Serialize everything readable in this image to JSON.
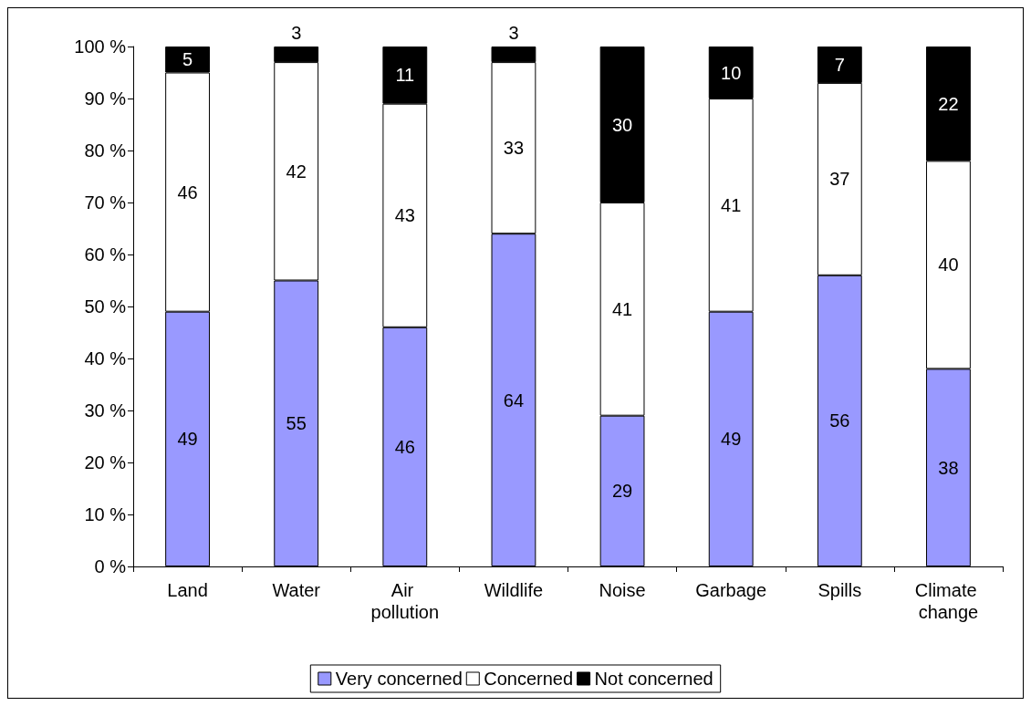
{
  "chart_data": {
    "type": "bar",
    "stacked": true,
    "categories": [
      "Land",
      "Water",
      "Air pollution",
      "Wildlife",
      "Noise",
      "Garbage",
      "Spills",
      "Climate change"
    ],
    "series": [
      {
        "name": "Very concerned",
        "color": "#9999ff",
        "values": [
          49,
          55,
          46,
          64,
          29,
          49,
          56,
          38
        ]
      },
      {
        "name": "Concerned",
        "color": "#ffffff",
        "values": [
          46,
          42,
          43,
          33,
          41,
          41,
          37,
          40
        ]
      },
      {
        "name": "Not concerned",
        "color": "#000000",
        "values": [
          5,
          3,
          11,
          3,
          30,
          10,
          7,
          22
        ]
      }
    ],
    "ylim": [
      0,
      100
    ],
    "yticks": [
      {
        "value": 0,
        "label": "0 %"
      },
      {
        "value": 10,
        "label": "10 %"
      },
      {
        "value": 20,
        "label": "20 %"
      },
      {
        "value": 30,
        "label": "30 %"
      },
      {
        "value": 40,
        "label": "40 %"
      },
      {
        "value": 50,
        "label": "50 %"
      },
      {
        "value": 60,
        "label": "60 %"
      },
      {
        "value": 70,
        "label": "70 %"
      },
      {
        "value": 80,
        "label": "80 %"
      },
      {
        "value": 90,
        "label": "90 %"
      },
      {
        "value": 100,
        "label": "100 %"
      }
    ],
    "data_labels": true,
    "grid": false,
    "legend": "bottom"
  }
}
